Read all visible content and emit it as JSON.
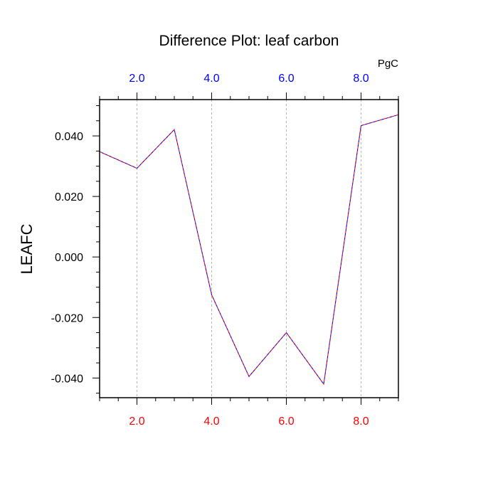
{
  "chart_data": {
    "type": "line",
    "title": "Difference Plot: leaf carbon",
    "ylabel": "LEAFC",
    "units_label": "PgC",
    "xlim": [
      1,
      9
    ],
    "ylim": [
      -0.0465,
      0.052
    ],
    "x": [
      1,
      2,
      3,
      4,
      5,
      6,
      7,
      8,
      9
    ],
    "series": [
      {
        "values": [
          0.0348,
          0.0293,
          0.0421,
          -0.0125,
          -0.0395,
          -0.025,
          -0.042,
          0.0434,
          0.047
        ],
        "colors": [
          "#ff0000",
          "#0000ff"
        ]
      }
    ],
    "x_ticks_bottom": [
      {
        "value": 2,
        "label": "2.0"
      },
      {
        "value": 4,
        "label": "4.0"
      },
      {
        "value": 6,
        "label": "6.0"
      },
      {
        "value": 8,
        "label": "8.0"
      }
    ],
    "x_ticks_top": [
      {
        "value": 2,
        "label": "2.0"
      },
      {
        "value": 4,
        "label": "4.0"
      },
      {
        "value": 6,
        "label": "6.0"
      },
      {
        "value": 8,
        "label": "8.0"
      }
    ],
    "y_ticks": [
      {
        "value": 0.04,
        "label": "0.040"
      },
      {
        "value": 0.02,
        "label": "0.020"
      },
      {
        "value": 0.0,
        "label": "0.000"
      },
      {
        "value": -0.02,
        "label": "-0.020"
      },
      {
        "value": -0.04,
        "label": "-0.040"
      }
    ],
    "vertical_grid": true,
    "colors": {
      "bottom_tick_labels": "#ff0000",
      "top_tick_labels": "#0000ff",
      "grid": "#b4b4b4"
    }
  }
}
